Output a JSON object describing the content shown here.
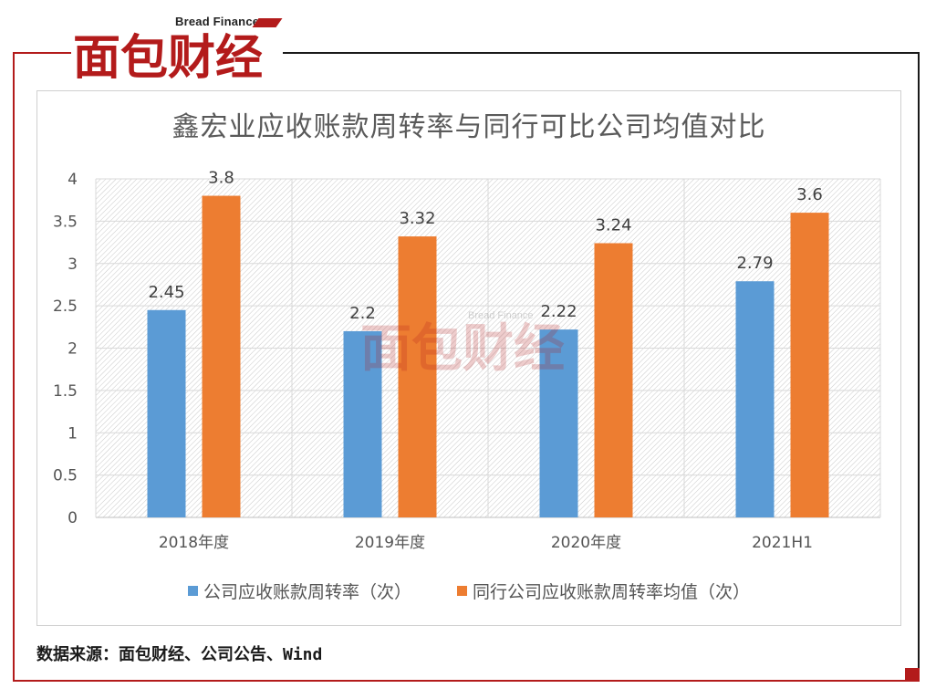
{
  "logo": {
    "name": "面包财经",
    "sub": "Bread Finance"
  },
  "source": "数据来源：面包财经、公司公告、Wind",
  "colors": {
    "series1": "#5B9BD5",
    "series2": "#ED7D31",
    "brand": "#B31B1B"
  },
  "chart_data": {
    "type": "bar",
    "title": "鑫宏业应收账款周转率与同行可比公司均值对比",
    "categories": [
      "2018年度",
      "2019年度",
      "2020年度",
      "2021H1"
    ],
    "series": [
      {
        "name": "公司应收账款周转率（次）",
        "values": [
          2.45,
          2.2,
          2.22,
          2.79
        ],
        "labels": [
          "2.45",
          "2.2",
          "2.22",
          "2.79"
        ]
      },
      {
        "name": "同行公司应收账款周转率均值（次）",
        "values": [
          3.8,
          3.32,
          3.24,
          3.6
        ],
        "labels": [
          "3.8",
          "3.32",
          "3.24",
          "3.6"
        ]
      }
    ],
    "yticks": [
      "0",
      "0.5",
      "1",
      "1.5",
      "2",
      "2.5",
      "3",
      "3.5",
      "4"
    ],
    "ylim": [
      0,
      4
    ],
    "grid": true,
    "legend": "bottom"
  }
}
